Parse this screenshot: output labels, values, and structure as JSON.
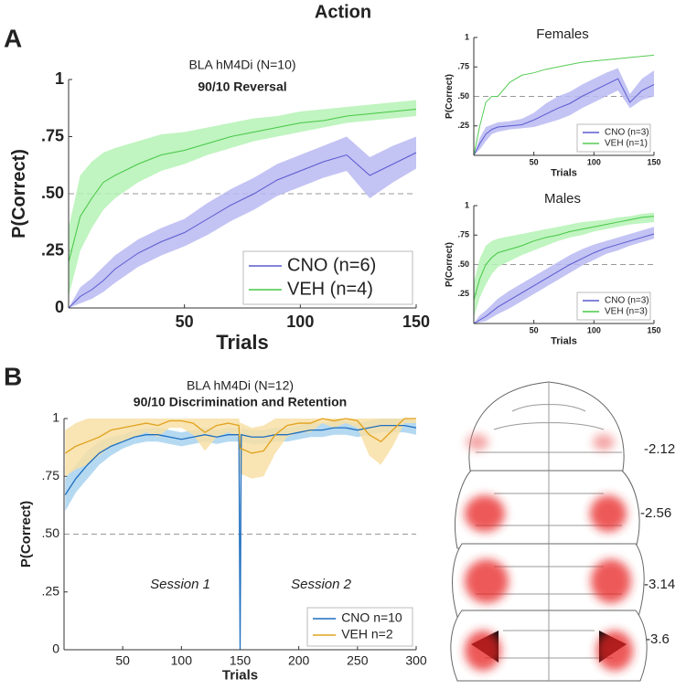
{
  "header": {
    "title": "Action",
    "panels": [
      "A",
      "B"
    ]
  },
  "atlas": {
    "levels": [
      "-2.12",
      "-2.56",
      "-3.14",
      "-3.6"
    ]
  },
  "chart_data": [
    {
      "type": "line",
      "title": "BLA hM4Di (N=10)",
      "subtitle": "90/10 Reversal",
      "x_label": "Trials",
      "y_label": "P(Correct)",
      "x": [
        0,
        5,
        10,
        15,
        20,
        30,
        40,
        50,
        60,
        70,
        80,
        90,
        100,
        110,
        120,
        130,
        140,
        150
      ],
      "series": [
        {
          "name": "CNO (n=6)",
          "color": "#5a5ad0",
          "band_color": "#b9b9f2",
          "values": [
            0,
            0.05,
            0.08,
            0.12,
            0.17,
            0.24,
            0.29,
            0.33,
            0.39,
            0.45,
            0.5,
            0.56,
            0.6,
            0.64,
            0.67,
            0.58,
            0.63,
            0.68
          ],
          "lower": [
            0,
            0.02,
            0.04,
            0.07,
            0.11,
            0.18,
            0.23,
            0.27,
            0.32,
            0.38,
            0.43,
            0.49,
            0.53,
            0.57,
            0.6,
            0.48,
            0.55,
            0.61
          ],
          "upper": [
            0,
            0.09,
            0.13,
            0.18,
            0.23,
            0.3,
            0.35,
            0.39,
            0.46,
            0.52,
            0.57,
            0.63,
            0.67,
            0.71,
            0.75,
            0.66,
            0.71,
            0.75
          ]
        },
        {
          "name": "VEH (n=4)",
          "color": "#45c845",
          "band_color": "#b5f2b5",
          "values": [
            0.2,
            0.4,
            0.48,
            0.55,
            0.58,
            0.63,
            0.67,
            0.69,
            0.72,
            0.75,
            0.77,
            0.79,
            0.81,
            0.82,
            0.84,
            0.85,
            0.86,
            0.87
          ],
          "lower": [
            0.05,
            0.25,
            0.35,
            0.43,
            0.48,
            0.55,
            0.6,
            0.63,
            0.67,
            0.7,
            0.73,
            0.75,
            0.77,
            0.79,
            0.81,
            0.82,
            0.83,
            0.84
          ],
          "upper": [
            0.35,
            0.58,
            0.64,
            0.68,
            0.7,
            0.73,
            0.76,
            0.77,
            0.79,
            0.81,
            0.83,
            0.84,
            0.86,
            0.87,
            0.88,
            0.89,
            0.9,
            0.91
          ]
        }
      ],
      "xlim": [
        0,
        150
      ],
      "xticks": [
        50,
        100,
        150
      ],
      "ylim": [
        0,
        1
      ],
      "yticks": [
        0,
        {
          "value": 0.25,
          "label": ".25"
        },
        {
          "value": 0.5,
          "label": ".50"
        },
        {
          "value": 0.75,
          "label": ".75"
        },
        1
      ],
      "hline": 0.5,
      "legend": "lower right"
    },
    {
      "type": "line",
      "title": "Females",
      "x_label": "Trials",
      "y_label": "P(Correct)",
      "x": [
        0,
        5,
        10,
        15,
        20,
        30,
        40,
        50,
        60,
        70,
        80,
        90,
        100,
        110,
        120,
        130,
        140,
        150
      ],
      "series": [
        {
          "name": "CNO (n=3)",
          "color": "#5a5ad0",
          "band_color": "#b9b9f2",
          "values": [
            0,
            0.1,
            0.18,
            0.22,
            0.24,
            0.25,
            0.26,
            0.3,
            0.35,
            0.4,
            0.44,
            0.5,
            0.55,
            0.6,
            0.65,
            0.45,
            0.55,
            0.6
          ],
          "lower": [
            0,
            0.05,
            0.12,
            0.18,
            0.2,
            0.22,
            0.23,
            0.24,
            0.27,
            0.3,
            0.34,
            0.4,
            0.45,
            0.5,
            0.55,
            0.4,
            0.47,
            0.5
          ],
          "upper": [
            0,
            0.15,
            0.24,
            0.26,
            0.28,
            0.29,
            0.31,
            0.36,
            0.44,
            0.5,
            0.54,
            0.6,
            0.65,
            0.7,
            0.74,
            0.52,
            0.65,
            0.72
          ]
        },
        {
          "name": "VEH (n=1)",
          "color": "#55cc55",
          "values": [
            0,
            0.25,
            0.45,
            0.5,
            0.5,
            0.62,
            0.68,
            0.7,
            0.73,
            0.75,
            0.77,
            0.79,
            0.8,
            0.81,
            0.82,
            0.83,
            0.84,
            0.85
          ]
        }
      ],
      "xlim": [
        0,
        150
      ],
      "xticks": [
        50,
        100,
        150
      ],
      "ylim": [
        0,
        1
      ],
      "yticks": [
        {
          "value": 0.25,
          "label": ".25"
        },
        {
          "value": 0.5,
          "label": ".50"
        },
        {
          "value": 0.75,
          "label": ".75"
        },
        1
      ],
      "hline": 0.5,
      "legend": "lower right"
    },
    {
      "type": "line",
      "title": "Males",
      "x_label": "Trials",
      "y_label": "P(Correct)",
      "x": [
        0,
        5,
        10,
        15,
        20,
        30,
        40,
        50,
        60,
        70,
        80,
        90,
        100,
        110,
        120,
        130,
        140,
        150
      ],
      "series": [
        {
          "name": "CNO (n=3)",
          "color": "#5a5ad0",
          "band_color": "#b9b9f2",
          "values": [
            0,
            0.03,
            0.06,
            0.1,
            0.14,
            0.2,
            0.26,
            0.32,
            0.38,
            0.44,
            0.5,
            0.55,
            0.6,
            0.64,
            0.67,
            0.7,
            0.73,
            0.76
          ],
          "lower": [
            0,
            0.01,
            0.02,
            0.05,
            0.08,
            0.13,
            0.19,
            0.25,
            0.31,
            0.37,
            0.43,
            0.49,
            0.54,
            0.59,
            0.62,
            0.66,
            0.69,
            0.72
          ],
          "upper": [
            0,
            0.07,
            0.11,
            0.16,
            0.21,
            0.28,
            0.34,
            0.4,
            0.46,
            0.52,
            0.58,
            0.63,
            0.67,
            0.7,
            0.73,
            0.76,
            0.79,
            0.82
          ]
        },
        {
          "name": "VEH (n=3)",
          "color": "#45c845",
          "band_color": "#b5f2b5",
          "values": [
            0.2,
            0.38,
            0.5,
            0.56,
            0.6,
            0.63,
            0.66,
            0.7,
            0.73,
            0.75,
            0.78,
            0.8,
            0.82,
            0.84,
            0.86,
            0.88,
            0.9,
            0.91
          ],
          "lower": [
            0.05,
            0.22,
            0.33,
            0.42,
            0.48,
            0.53,
            0.58,
            0.62,
            0.66,
            0.7,
            0.73,
            0.75,
            0.78,
            0.8,
            0.82,
            0.84,
            0.85,
            0.86
          ],
          "upper": [
            0.35,
            0.55,
            0.66,
            0.7,
            0.72,
            0.74,
            0.76,
            0.78,
            0.8,
            0.82,
            0.84,
            0.86,
            0.87,
            0.88,
            0.9,
            0.91,
            0.93,
            0.94
          ]
        }
      ],
      "xlim": [
        0,
        150
      ],
      "xticks": [
        50,
        100,
        150
      ],
      "ylim": [
        0,
        1
      ],
      "yticks": [
        {
          "value": 0.25,
          "label": ".25"
        },
        {
          "value": 0.5,
          "label": ".50"
        },
        {
          "value": 0.75,
          "label": ".75"
        },
        1
      ],
      "hline": 0.5,
      "legend": "lower right"
    },
    {
      "type": "line",
      "title": "BLA hM4Di (N=12)",
      "subtitle": "90/10 Discrimination and Retention",
      "x_label": "Trials",
      "y_label": "P(Correct)",
      "annotations": [
        "Session 1",
        "Session 2"
      ],
      "x": [
        1,
        10,
        20,
        30,
        40,
        50,
        60,
        70,
        80,
        90,
        100,
        110,
        120,
        130,
        140,
        149,
        150,
        151,
        160,
        170,
        180,
        190,
        200,
        210,
        220,
        230,
        240,
        250,
        260,
        270,
        280,
        290,
        300
      ],
      "series": [
        {
          "name": "CNO n=10",
          "color": "#1f6fbf",
          "band_color": "#a8d2ee",
          "values": [
            0.67,
            0.74,
            0.8,
            0.85,
            0.88,
            0.9,
            0.92,
            0.93,
            0.93,
            0.92,
            0.91,
            0.92,
            0.93,
            0.92,
            0.93,
            0.93,
            0,
            0.93,
            0.92,
            0.92,
            0.93,
            0.93,
            0.94,
            0.95,
            0.95,
            0.96,
            0.96,
            0.95,
            0.96,
            0.97,
            0.97,
            0.97,
            0.96
          ],
          "lower": [
            0.6,
            0.68,
            0.74,
            0.8,
            0.84,
            0.87,
            0.89,
            0.9,
            0.9,
            0.89,
            0.88,
            0.89,
            0.9,
            0.89,
            0.9,
            0.9,
            null,
            0.9,
            0.89,
            0.89,
            0.9,
            0.9,
            0.91,
            0.92,
            0.92,
            0.93,
            0.93,
            0.92,
            0.93,
            0.94,
            0.94,
            0.94,
            0.93
          ],
          "upper": [
            0.74,
            0.8,
            0.86,
            0.9,
            0.92,
            0.93,
            0.95,
            0.96,
            0.96,
            0.95,
            0.94,
            0.95,
            0.96,
            0.95,
            0.96,
            0.96,
            null,
            0.96,
            0.95,
            0.95,
            0.96,
            0.96,
            0.97,
            0.98,
            0.98,
            0.99,
            0.99,
            0.98,
            0.99,
            1,
            1,
            1,
            0.99
          ]
        },
        {
          "name": "VEH n=2",
          "color": "#e0a21e",
          "band_color": "#f8dfa6",
          "values": [
            0.85,
            0.88,
            0.9,
            0.92,
            0.95,
            0.96,
            0.97,
            0.98,
            0.97,
            0.99,
            0.99,
            0.98,
            0.94,
            0.97,
            0.98,
            0.97,
            0.87,
            0.87,
            0.85,
            0.86,
            0.93,
            0.97,
            0.98,
            0.98,
            1,
            0.99,
            1,
            0.99,
            0.93,
            0.9,
            0.95,
            1,
            1
          ],
          "lower": [
            0.75,
            0.78,
            0.8,
            0.84,
            0.88,
            0.9,
            0.92,
            0.94,
            0.92,
            0.96,
            0.96,
            0.93,
            0.86,
            0.92,
            0.94,
            0.92,
            0.76,
            0.76,
            0.74,
            0.75,
            0.85,
            0.92,
            0.94,
            0.94,
            0.98,
            0.96,
            0.98,
            0.96,
            0.84,
            0.8,
            0.88,
            0.98,
            0.98
          ],
          "upper": [
            0.95,
            0.98,
            1,
            1,
            1,
            1,
            1,
            1,
            1,
            1,
            1,
            1,
            1,
            1,
            1,
            1,
            0.98,
            0.98,
            0.96,
            0.97,
            1,
            1,
            1,
            1,
            1,
            1,
            1,
            1,
            1,
            1,
            1,
            1,
            1
          ]
        }
      ],
      "xlim": [
        0,
        300
      ],
      "xticks": [
        50,
        100,
        150,
        200,
        250,
        300
      ],
      "ylim": [
        0,
        1
      ],
      "yticks": [
        0,
        {
          "value": 0.25,
          "label": ".25"
        },
        {
          "value": 0.5,
          "label": ".50"
        },
        {
          "value": 0.75,
          "label": ".75"
        },
        1
      ],
      "hline": 0.5,
      "legend": "lower right"
    }
  ]
}
